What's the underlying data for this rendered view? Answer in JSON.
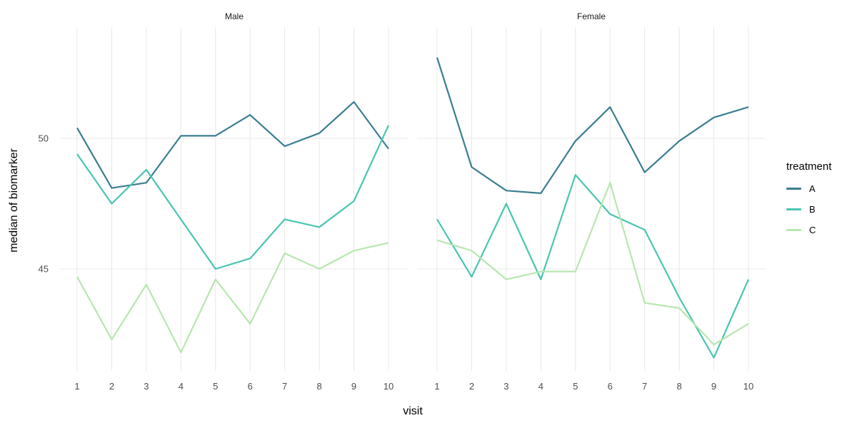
{
  "chart_data": {
    "type": "line",
    "xlabel": "visit",
    "ylabel": "median of biomarker",
    "x": [
      1,
      2,
      3,
      4,
      5,
      6,
      7,
      8,
      9,
      10
    ],
    "yticks": [
      {
        "label": "50",
        "value": 50
      },
      {
        "label": "45",
        "value": 45
      }
    ],
    "ylim": [
      41.0,
      54.3
    ],
    "grid": true,
    "legend_position": "right",
    "legend": {
      "title": "treatment",
      "entries": [
        {
          "label": "A",
          "color": "#3a7e91"
        },
        {
          "label": "B",
          "color": "#49c5b1"
        },
        {
          "label": "C",
          "color": "#b8e6b0"
        }
      ]
    },
    "facets": [
      {
        "label": "Male",
        "series": [
          {
            "name": "A",
            "values": [
              50.4,
              48.1,
              48.3,
              50.1,
              50.1,
              50.9,
              49.7,
              50.2,
              51.4,
              49.6
            ]
          },
          {
            "name": "B",
            "values": [
              49.4,
              47.5,
              48.8,
              46.9,
              45.0,
              45.4,
              46.9,
              46.6,
              47.6,
              50.5
            ]
          },
          {
            "name": "C",
            "values": [
              44.7,
              42.3,
              44.4,
              41.8,
              44.6,
              42.9,
              45.6,
              45.0,
              45.7,
              46.0
            ]
          }
        ]
      },
      {
        "label": "Female",
        "series": [
          {
            "name": "A",
            "values": [
              53.1,
              48.9,
              48.0,
              47.9,
              49.9,
              51.2,
              48.7,
              49.9,
              50.8,
              51.2
            ]
          },
          {
            "name": "B",
            "values": [
              46.9,
              44.7,
              47.5,
              44.6,
              48.6,
              47.1,
              46.5,
              43.9,
              41.6,
              44.6
            ]
          },
          {
            "name": "C",
            "values": [
              46.1,
              45.7,
              44.6,
              44.9,
              44.9,
              48.3,
              43.7,
              43.5,
              42.1,
              42.9
            ]
          }
        ]
      }
    ],
    "style": {
      "gridline_color": "#e8e8e8",
      "background": "#ffffff",
      "tick_text_color": "#4d4d4d",
      "line_width": 2.2
    }
  }
}
